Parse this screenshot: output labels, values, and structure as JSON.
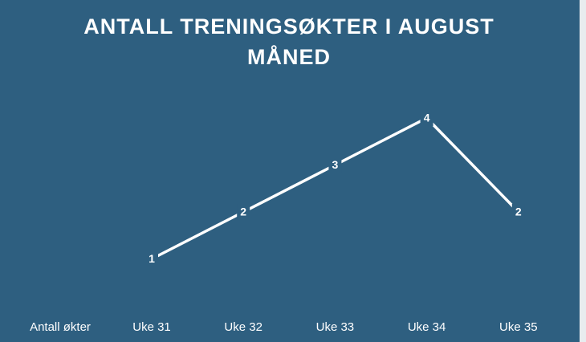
{
  "chart_data": {
    "type": "line",
    "title": "ANTALL TRENINGSØKTER I AUGUST MÅNED",
    "categories": [
      "Uke 31",
      "Uke 32",
      "Uke 33",
      "Uke 34",
      "Uke 35"
    ],
    "series": [
      {
        "name": "Antall økter",
        "color": "#ffffff",
        "values": [
          1,
          2,
          3,
          4,
          2
        ]
      }
    ]
  }
}
